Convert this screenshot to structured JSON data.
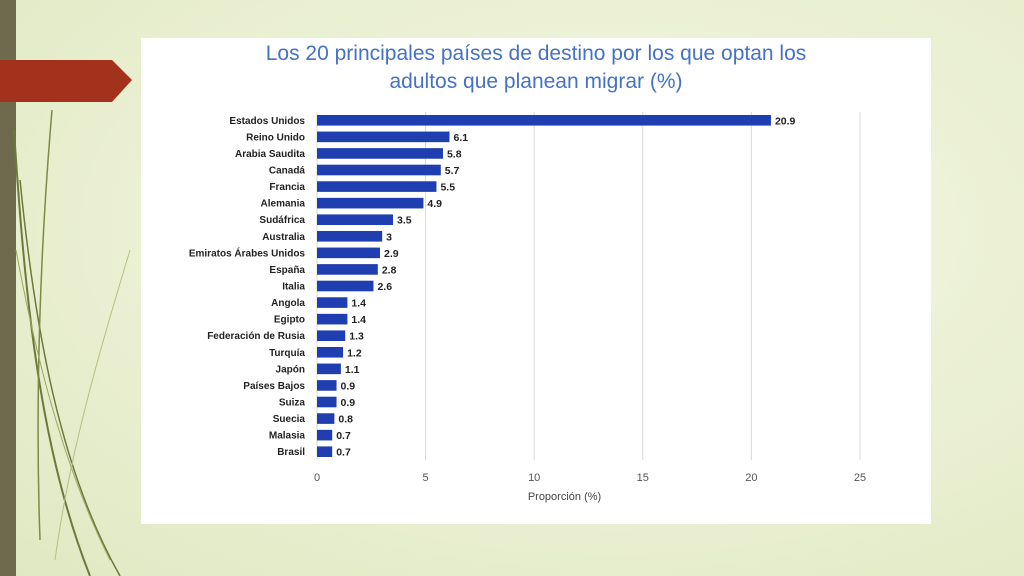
{
  "colors": {
    "background": "#e9efd0",
    "stripe": "#6f6a4e",
    "accent_arrow": "#a3321c",
    "title": "#4472c4",
    "bar": "#1f3fb0",
    "grid": "#d9d9d9"
  },
  "chart_data": {
    "type": "bar",
    "orientation": "horizontal",
    "title": "Los 20 principales países de destino por los que optan los adultos que planean migrar (%)",
    "title_lines": [
      "Los 20 principales países de destino por los que optan los",
      "adultos que planean migrar (%)"
    ],
    "xlabel": "Proporción (%)",
    "ylabel": "",
    "xlim": [
      0,
      25
    ],
    "xticks": [
      0,
      5,
      10,
      15,
      20,
      25
    ],
    "grid": "vertical",
    "legend": "none",
    "categories": [
      "Estados Unidos",
      "Reino Unido",
      "Arabia Saudita",
      "Canadá",
      "Francia",
      "Alemania",
      "Sudáfrica",
      "Australia",
      "Emiratos Árabes Unidos",
      "España",
      "Italia",
      "Angola",
      "Egipto",
      "Federación de Rusia",
      "Turquía",
      "Japón",
      "Países Bajos",
      "Suiza",
      "Suecia",
      "Malasia",
      "Brasil"
    ],
    "values": [
      20.9,
      6.1,
      5.8,
      5.7,
      5.5,
      4.9,
      3.5,
      3,
      2.9,
      2.8,
      2.6,
      1.4,
      1.4,
      1.3,
      1.2,
      1.1,
      0.9,
      0.9,
      0.8,
      0.7,
      0.7
    ],
    "value_labels": [
      "20.9",
      "6.1",
      "5.8",
      "5.7",
      "5.5",
      "4.9",
      "3.5",
      "3",
      "2.9",
      "2.8",
      "2.6",
      "1.4",
      "1.4",
      "1.3",
      "1.2",
      "1.1",
      "0.9",
      "0.9",
      "0.8",
      "0.7",
      "0.7"
    ]
  }
}
